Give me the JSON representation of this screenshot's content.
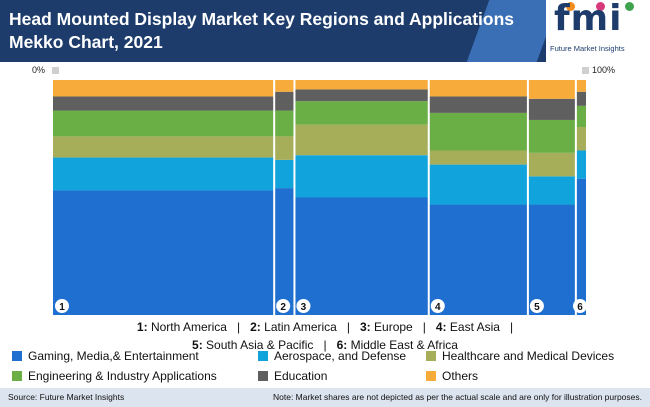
{
  "header": {
    "title": "Head Mounted Display Market Key Regions and Applications Mekko Chart, 2021",
    "logo_text": "fmi",
    "logo_subtitle": "Future Market Insights"
  },
  "axis": {
    "left_label": "0%",
    "right_label": "100%"
  },
  "category_legend": [
    {
      "num": "1:",
      "name": "North America",
      "sep": "|"
    },
    {
      "num": "2:",
      "name": "Latin America",
      "sep": "|"
    },
    {
      "num": "3:",
      "name": "Europe",
      "sep": "|"
    },
    {
      "num": "4:",
      "name": "East Asia",
      "sep": "|"
    },
    {
      "num": "5:",
      "name": "South Asia & Pacific",
      "sep": "|"
    },
    {
      "num": "6:",
      "name": "Middle East & Africa",
      "sep": ""
    }
  ],
  "chart_data": {
    "type": "mekko",
    "title": "Head Mounted Display Market Key Regions and Applications Mekko Chart, 2021",
    "x_range": [
      0,
      100
    ],
    "x_labels": [
      "0%",
      "100%"
    ],
    "categories": [
      "1",
      "2",
      "3",
      "4",
      "5",
      "6"
    ],
    "category_names": [
      "North America",
      "Latin America",
      "Europe",
      "East Asia",
      "South Asia & Pacific",
      "Middle East & Africa"
    ],
    "widths": [
      41.5,
      3.8,
      25.2,
      18.6,
      9.0,
      1.9
    ],
    "series": [
      {
        "name": "Gaming, Media,& Entertainment",
        "color": "#1f6fd0",
        "values": [
          53,
          54,
          50,
          47,
          47,
          58
        ]
      },
      {
        "name": "Aerospace, and Defense",
        "color": "#10a3dc",
        "values": [
          14,
          12,
          18,
          17,
          12,
          12
        ]
      },
      {
        "name": "Healthcare and Medical Devices",
        "color": "#a7ae5a",
        "values": [
          9,
          10,
          13,
          6,
          10,
          10
        ]
      },
      {
        "name": "Engineering & Industry Applications",
        "color": "#6aaf45",
        "values": [
          11,
          11,
          10,
          16,
          14,
          9
        ]
      },
      {
        "name": "Education",
        "color": "#5f5f5f",
        "values": [
          6,
          8,
          5,
          7,
          9,
          6
        ]
      },
      {
        "name": "Others",
        "color": "#f7ab3b",
        "values": [
          7,
          5,
          4,
          7,
          8,
          5
        ]
      }
    ]
  },
  "footer": {
    "source": "Source: Future Market Insights",
    "note": "Note: Market shares are not depicted as per the actual scale and are only for illustration purposes."
  }
}
